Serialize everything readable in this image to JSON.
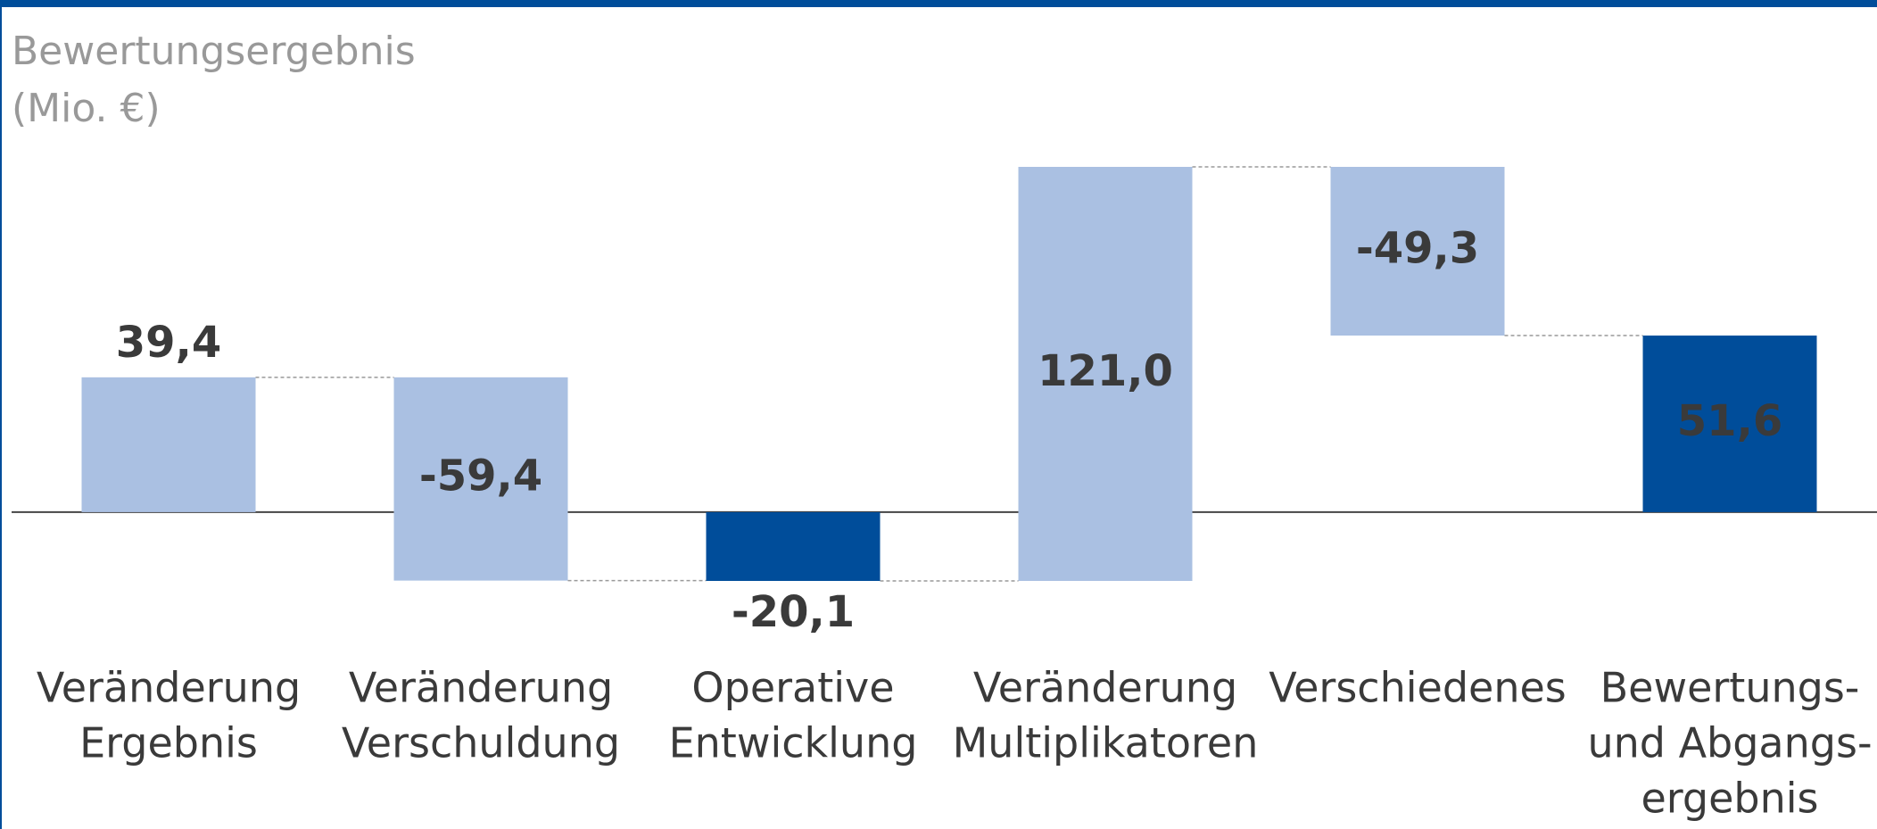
{
  "chart_data": {
    "type": "waterfall",
    "title": "Bewertungsergebnis",
    "subtitle": "(Mio. €)",
    "categories": [
      [
        "Veränderung",
        "Ergebnis"
      ],
      [
        "Veränderung",
        "Verschuldung"
      ],
      [
        "Operative",
        "Entwicklung"
      ],
      [
        "Veränderung",
        "Multiplikatoren"
      ],
      [
        "Verschiedenes"
      ],
      [
        "Bewertungs-",
        "und Abgangs-",
        "ergebnis"
      ]
    ],
    "values": [
      39.4,
      -59.4,
      -20.1,
      121.0,
      -49.3,
      51.6
    ],
    "value_labels": [
      "39,4",
      "-59,4",
      "-20,1",
      "121,0",
      "-49,3",
      "51,6"
    ],
    "colors": [
      "#aac0e2",
      "#aac0e2",
      "#004d9a",
      "#aac0e2",
      "#aac0e2",
      "#004d9a"
    ],
    "subtotal_indices": [
      2,
      5
    ]
  }
}
